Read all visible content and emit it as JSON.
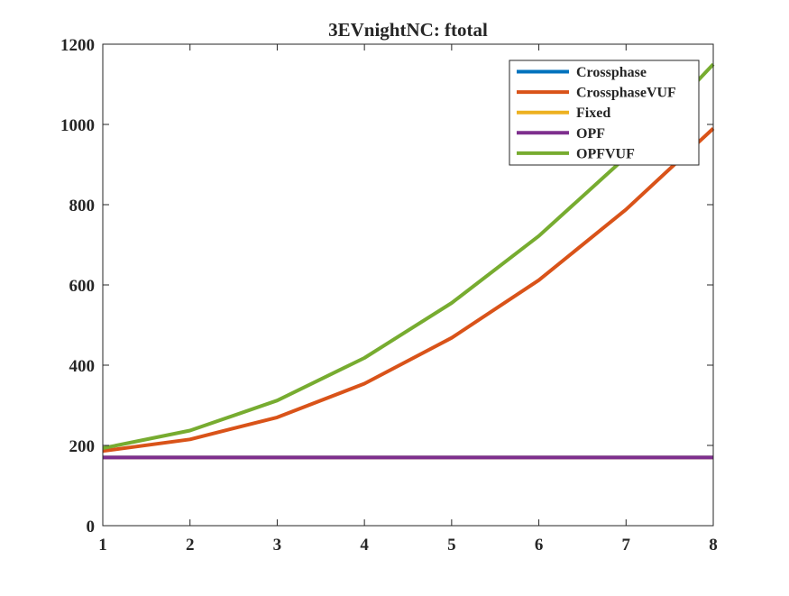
{
  "chart_data": {
    "type": "line",
    "title": "3EVnightNC: ftotal",
    "xlabel": "",
    "ylabel": "",
    "xlim": [
      1,
      8
    ],
    "ylim": [
      0,
      1200
    ],
    "xticks": [
      1,
      2,
      3,
      4,
      5,
      6,
      7,
      8
    ],
    "yticks": [
      0,
      200,
      400,
      600,
      800,
      1000,
      1200
    ],
    "grid": false,
    "legend_position": "top-right",
    "x": [
      1,
      2,
      3,
      4,
      5,
      6,
      7,
      8
    ],
    "series": [
      {
        "name": "Crossphase",
        "color": "#0072BD",
        "values": [
          170,
          170,
          170,
          170,
          170,
          170,
          170,
          170
        ]
      },
      {
        "name": "CrossphaseVUF",
        "color": "#D95319",
        "values": [
          186,
          215,
          270,
          354,
          468,
          612,
          788,
          990
        ]
      },
      {
        "name": "Fixed",
        "color": "#EDB120",
        "values": [
          170,
          170,
          170,
          170,
          170,
          170,
          170,
          170
        ]
      },
      {
        "name": "OPF",
        "color": "#7E2F8E",
        "values": [
          170,
          170,
          170,
          170,
          170,
          170,
          170,
          170
        ]
      },
      {
        "name": "OPFVUF",
        "color": "#77AC30",
        "values": [
          193,
          237,
          312,
          418,
          555,
          722,
          919,
          1150
        ]
      }
    ]
  }
}
